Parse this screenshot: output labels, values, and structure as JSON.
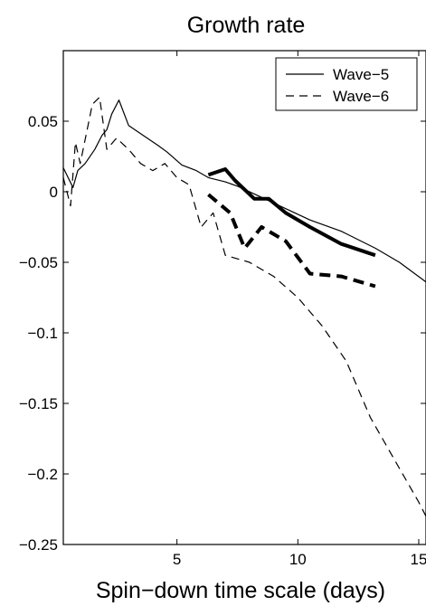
{
  "chart_data": {
    "type": "line",
    "title": "Growth rate",
    "xlabel": "Spin−down time scale (days)",
    "ylabel": "",
    "xlim": [
      0.3,
      15.3
    ],
    "ylim": [
      -0.25,
      0.1
    ],
    "xticks": [
      5,
      10,
      15
    ],
    "xtick_labels": [
      "5",
      "10",
      "15"
    ],
    "yticks": [
      0.05,
      0,
      -0.05,
      -0.1,
      -0.15,
      -0.2,
      -0.25
    ],
    "ytick_labels": [
      "0.05",
      "0",
      "−0.05",
      "−0.1",
      "−0.15",
      "−0.2",
      "−0.25"
    ],
    "grid": false,
    "legend_position": "top-right",
    "legend": [
      {
        "label": "Wave−5",
        "style": "solid"
      },
      {
        "label": "Wave−6",
        "style": "dashed"
      }
    ],
    "series": [
      {
        "name": "Wave−5",
        "style": "solid",
        "weight": "thin",
        "x": [
          0.3,
          0.7,
          0.9,
          1.2,
          1.6,
          1.9,
          2.1,
          2.3,
          2.6,
          3.0,
          3.6,
          4.2,
          4.6,
          5.2,
          5.8,
          6.3,
          7.0,
          7.5,
          8.5,
          9.5,
          10.5,
          11.8,
          13.2,
          14.2,
          15.3
        ],
        "y": [
          0.017,
          0.003,
          0.015,
          0.02,
          0.03,
          0.04,
          0.044,
          0.055,
          0.065,
          0.047,
          0.04,
          0.033,
          0.028,
          0.019,
          0.015,
          0.01,
          0.007,
          0.004,
          -0.004,
          -0.012,
          -0.02,
          -0.028,
          -0.04,
          -0.05,
          -0.064
        ]
      },
      {
        "name": "Wave−6",
        "style": "dashed",
        "weight": "thin",
        "x": [
          0.3,
          0.6,
          0.8,
          1.0,
          1.3,
          1.5,
          1.8,
          2.1,
          2.5,
          3.0,
          3.5,
          4.0,
          4.5,
          5.0,
          5.5,
          6.0,
          6.5,
          7.0,
          8.0,
          9.0,
          10.0,
          11.0,
          12.0,
          13.0,
          14.0,
          15.0,
          15.3
        ],
        "y": [
          0.01,
          -0.01,
          0.035,
          0.02,
          0.045,
          0.062,
          0.067,
          0.03,
          0.038,
          0.03,
          0.02,
          0.015,
          0.02,
          0.01,
          0.005,
          -0.025,
          -0.015,
          -0.045,
          -0.05,
          -0.06,
          -0.075,
          -0.095,
          -0.12,
          -0.16,
          -0.19,
          -0.22,
          -0.23
        ]
      },
      {
        "name": "",
        "style": "solid",
        "weight": "thick",
        "x": [
          6.3,
          7.0,
          7.4,
          8.2,
          8.8,
          9.5,
          10.5,
          11.8,
          13.2
        ],
        "y": [
          0.012,
          0.016,
          0.008,
          -0.005,
          -0.005,
          -0.015,
          -0.025,
          -0.037,
          -0.045
        ]
      },
      {
        "name": "",
        "style": "dashed",
        "weight": "thick",
        "x": [
          6.3,
          7.2,
          7.8,
          8.5,
          9.5,
          10.5,
          11.8,
          13.2
        ],
        "y": [
          -0.002,
          -0.015,
          -0.04,
          -0.025,
          -0.035,
          -0.058,
          -0.06,
          -0.067
        ]
      }
    ]
  }
}
